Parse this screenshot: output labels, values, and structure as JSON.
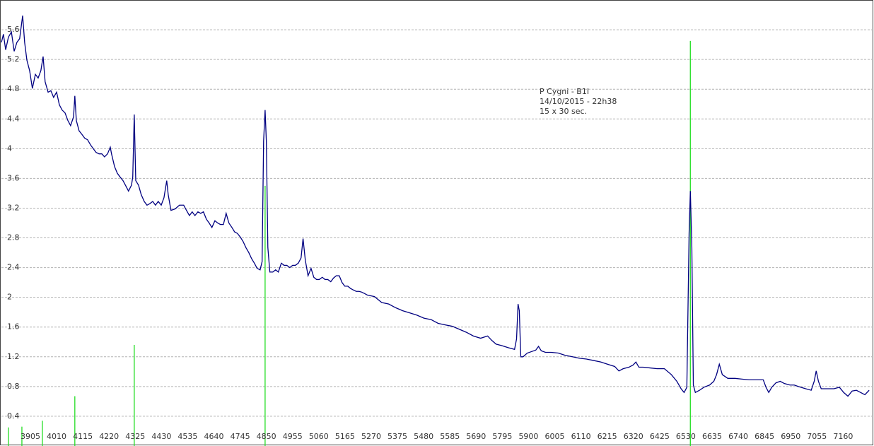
{
  "chart_data": {
    "type": "line",
    "annotations": [
      "P Cygni - B1I",
      "14/10/2015 - 22h38",
      "15 x 30 sec."
    ],
    "xlim": [
      3789,
      7275
    ],
    "ylim": [
      0,
      6
    ],
    "xticks": [
      3905,
      4010,
      4115,
      4220,
      4325,
      4430,
      4535,
      4640,
      4745,
      4850,
      4955,
      5060,
      5165,
      5270,
      5375,
      5480,
      5585,
      5690,
      5795,
      5900,
      6005,
      6110,
      6215,
      6320,
      6425,
      6530,
      6635,
      6740,
      6845,
      6950,
      7055,
      7160
    ],
    "yticks": [
      0.4,
      0.8,
      1.2,
      1.6,
      2,
      2.4,
      2.8,
      3.2,
      3.6,
      4,
      4.4,
      4.8,
      5.2,
      5.6
    ],
    "grid": "horizontal",
    "series": [
      {
        "color": "#000080",
        "style": "line",
        "x": [
          3789,
          3797,
          3806,
          3817,
          3829,
          3840,
          3851,
          3862,
          3874,
          3882,
          3891,
          3902,
          3913,
          3925,
          3936,
          3947,
          3956,
          3964,
          3976,
          3987,
          3998,
          4010,
          4021,
          4032,
          4044,
          4055,
          4066,
          4078,
          4083,
          4089,
          4100,
          4112,
          4123,
          4134,
          4146,
          4157,
          4168,
          4180,
          4191,
          4202,
          4214,
          4225,
          4230,
          4242,
          4253,
          4264,
          4276,
          4287,
          4298,
          4310,
          4315,
          4321,
          4327,
          4338,
          4349,
          4361,
          4372,
          4383,
          4395,
          4406,
          4417,
          4429,
          4440,
          4451,
          4457,
          4468,
          4485,
          4502,
          4519,
          4530,
          4542,
          4553,
          4564,
          4576,
          4587,
          4598,
          4610,
          4621,
          4632,
          4644,
          4655,
          4666,
          4678,
          4689,
          4700,
          4712,
          4723,
          4734,
          4746,
          4757,
          4768,
          4780,
          4791,
          4802,
          4813,
          4825,
          4833,
          4839,
          4845,
          4850,
          4856,
          4864,
          4876,
          4887,
          4898,
          4910,
          4921,
          4932,
          4944,
          4955,
          4966,
          4978,
          4989,
          4997,
          5006,
          5017,
          5029,
          5040,
          5051,
          5062,
          5074,
          5085,
          5096,
          5108,
          5119,
          5130,
          5142,
          5153,
          5164,
          5176,
          5187,
          5198,
          5210,
          5221,
          5232,
          5244,
          5255,
          5283,
          5312,
          5340,
          5368,
          5396,
          5425,
          5453,
          5481,
          5510,
          5538,
          5566,
          5595,
          5623,
          5651,
          5679,
          5708,
          5736,
          5753,
          5770,
          5793,
          5821,
          5844,
          5852,
          5858,
          5863,
          5869,
          5878,
          5895,
          5912,
          5929,
          5940,
          5951,
          5968,
          5991,
          6019,
          6047,
          6076,
          6104,
          6132,
          6161,
          6189,
          6217,
          6245,
          6262,
          6279,
          6302,
          6319,
          6330,
          6342,
          6359,
          6387,
          6415,
          6444,
          6472,
          6494,
          6511,
          6523,
          6534,
          6543,
          6548,
          6554,
          6560,
          6568,
          6585,
          6602,
          6625,
          6642,
          6653,
          6664,
          6676,
          6698,
          6727,
          6755,
          6783,
          6811,
          6840,
          6851,
          6862,
          6874,
          6891,
          6908,
          6925,
          6947,
          6964,
          6981,
          7010,
          7032,
          7044,
          7052,
          7061,
          7072,
          7094,
          7123,
          7145,
          7162,
          7179,
          7196,
          7213,
          7230,
          7247,
          7264
        ],
        "values": [
          5.43,
          5.54,
          5.33,
          5.5,
          5.57,
          5.31,
          5.43,
          5.48,
          5.79,
          5.43,
          5.19,
          5.05,
          4.81,
          5.0,
          4.95,
          5.05,
          5.24,
          4.9,
          4.76,
          4.78,
          4.69,
          4.76,
          4.59,
          4.52,
          4.48,
          4.38,
          4.31,
          4.43,
          4.71,
          4.38,
          4.24,
          4.19,
          4.14,
          4.12,
          4.05,
          4.0,
          3.95,
          3.93,
          3.93,
          3.89,
          3.93,
          4.02,
          3.93,
          3.76,
          3.67,
          3.62,
          3.57,
          3.5,
          3.43,
          3.51,
          3.62,
          4.46,
          3.57,
          3.51,
          3.38,
          3.29,
          3.24,
          3.26,
          3.29,
          3.24,
          3.29,
          3.24,
          3.34,
          3.57,
          3.38,
          3.17,
          3.19,
          3.24,
          3.24,
          3.17,
          3.1,
          3.15,
          3.1,
          3.15,
          3.13,
          3.15,
          3.05,
          3.0,
          2.94,
          3.03,
          3.0,
          2.98,
          2.98,
          3.13,
          3.0,
          2.94,
          2.88,
          2.86,
          2.81,
          2.75,
          2.67,
          2.6,
          2.52,
          2.46,
          2.39,
          2.37,
          2.48,
          4.1,
          4.52,
          4.1,
          2.67,
          2.34,
          2.34,
          2.37,
          2.34,
          2.46,
          2.43,
          2.43,
          2.4,
          2.43,
          2.43,
          2.46,
          2.53,
          2.79,
          2.5,
          2.29,
          2.39,
          2.27,
          2.24,
          2.24,
          2.27,
          2.24,
          2.24,
          2.21,
          2.26,
          2.29,
          2.29,
          2.2,
          2.15,
          2.15,
          2.12,
          2.1,
          2.08,
          2.08,
          2.07,
          2.05,
          2.03,
          2.01,
          1.93,
          1.91,
          1.86,
          1.82,
          1.79,
          1.76,
          1.72,
          1.7,
          1.65,
          1.63,
          1.61,
          1.57,
          1.53,
          1.48,
          1.45,
          1.48,
          1.42,
          1.37,
          1.35,
          1.32,
          1.3,
          1.44,
          1.91,
          1.82,
          1.2,
          1.2,
          1.25,
          1.27,
          1.29,
          1.34,
          1.28,
          1.26,
          1.26,
          1.25,
          1.22,
          1.2,
          1.18,
          1.17,
          1.15,
          1.13,
          1.1,
          1.07,
          1.01,
          1.04,
          1.06,
          1.09,
          1.13,
          1.06,
          1.06,
          1.05,
          1.04,
          1.04,
          0.96,
          0.87,
          0.77,
          0.72,
          0.79,
          2.86,
          3.43,
          2.67,
          0.82,
          0.72,
          0.75,
          0.79,
          0.82,
          0.87,
          0.96,
          1.1,
          0.96,
          0.91,
          0.91,
          0.9,
          0.89,
          0.89,
          0.89,
          0.79,
          0.72,
          0.79,
          0.85,
          0.87,
          0.84,
          0.82,
          0.82,
          0.8,
          0.77,
          0.75,
          0.87,
          1.01,
          0.87,
          0.77,
          0.77,
          0.77,
          0.79,
          0.72,
          0.67,
          0.74,
          0.75,
          0.72,
          0.69,
          0.75
        ]
      },
      {
        "color": "#22dd22",
        "style": "stem",
        "x": [
          3817,
          3871,
          3953,
          4083,
          4321,
          4845,
          6548
        ],
        "values": [
          0.25,
          0.26,
          0.34,
          0.67,
          1.36,
          3.5,
          5.45
        ]
      }
    ]
  }
}
